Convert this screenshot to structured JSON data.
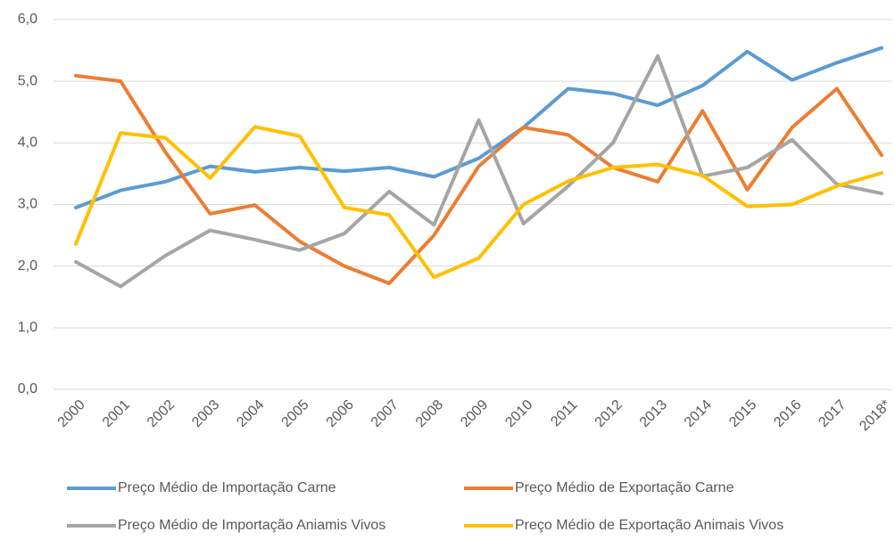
{
  "chart_data": {
    "type": "line",
    "categories": [
      "2000",
      "2001",
      "2002",
      "2003",
      "2004",
      "2005",
      "2006",
      "2007",
      "2008",
      "2009",
      "2010",
      "2011",
      "2012",
      "2013",
      "2014",
      "2015",
      "2016",
      "2017",
      "2018*"
    ],
    "series": [
      {
        "name": "Preço Médio de Importação Carne",
        "color": "#5b9bd5",
        "values": [
          2.95,
          3.23,
          3.37,
          3.62,
          3.53,
          3.6,
          3.54,
          3.6,
          3.45,
          3.75,
          4.25,
          4.88,
          4.8,
          4.61,
          4.93,
          5.48,
          5.02,
          5.3,
          5.54
        ]
      },
      {
        "name": "Preço Médio de Exportação Carne",
        "color": "#ed7d31",
        "values": [
          5.09,
          5.0,
          3.85,
          2.85,
          2.99,
          2.4,
          2.0,
          1.72,
          2.5,
          3.62,
          4.25,
          4.13,
          3.6,
          3.37,
          4.52,
          3.24,
          4.25,
          4.88,
          3.8
        ]
      },
      {
        "name": "Preço Médio de Importação Aniamis Vivos",
        "color": "#a5a5a5",
        "values": [
          2.07,
          1.67,
          2.17,
          2.58,
          2.43,
          2.26,
          2.53,
          3.21,
          2.67,
          4.37,
          2.69,
          3.3,
          4.0,
          5.41,
          3.46,
          3.6,
          4.05,
          3.33,
          3.18
        ]
      },
      {
        "name": "Preço Médio de Exportação Animais Vivos",
        "color": "#ffc000",
        "values": [
          2.36,
          4.16,
          4.08,
          3.43,
          4.26,
          4.11,
          2.95,
          2.83,
          1.82,
          2.13,
          3.0,
          3.38,
          3.6,
          3.65,
          3.47,
          2.97,
          3.0,
          3.3,
          3.51
        ]
      }
    ],
    "ylim": [
      0,
      6
    ],
    "yticks": [
      {
        "value": 0,
        "label": "0,0"
      },
      {
        "value": 1,
        "label": "1,0"
      },
      {
        "value": 2,
        "label": "2,0"
      },
      {
        "value": 3,
        "label": "3,0"
      },
      {
        "value": 4,
        "label": "4,0"
      },
      {
        "value": 5,
        "label": "5,0"
      },
      {
        "value": 6,
        "label": "6,0"
      }
    ],
    "grid": true
  }
}
